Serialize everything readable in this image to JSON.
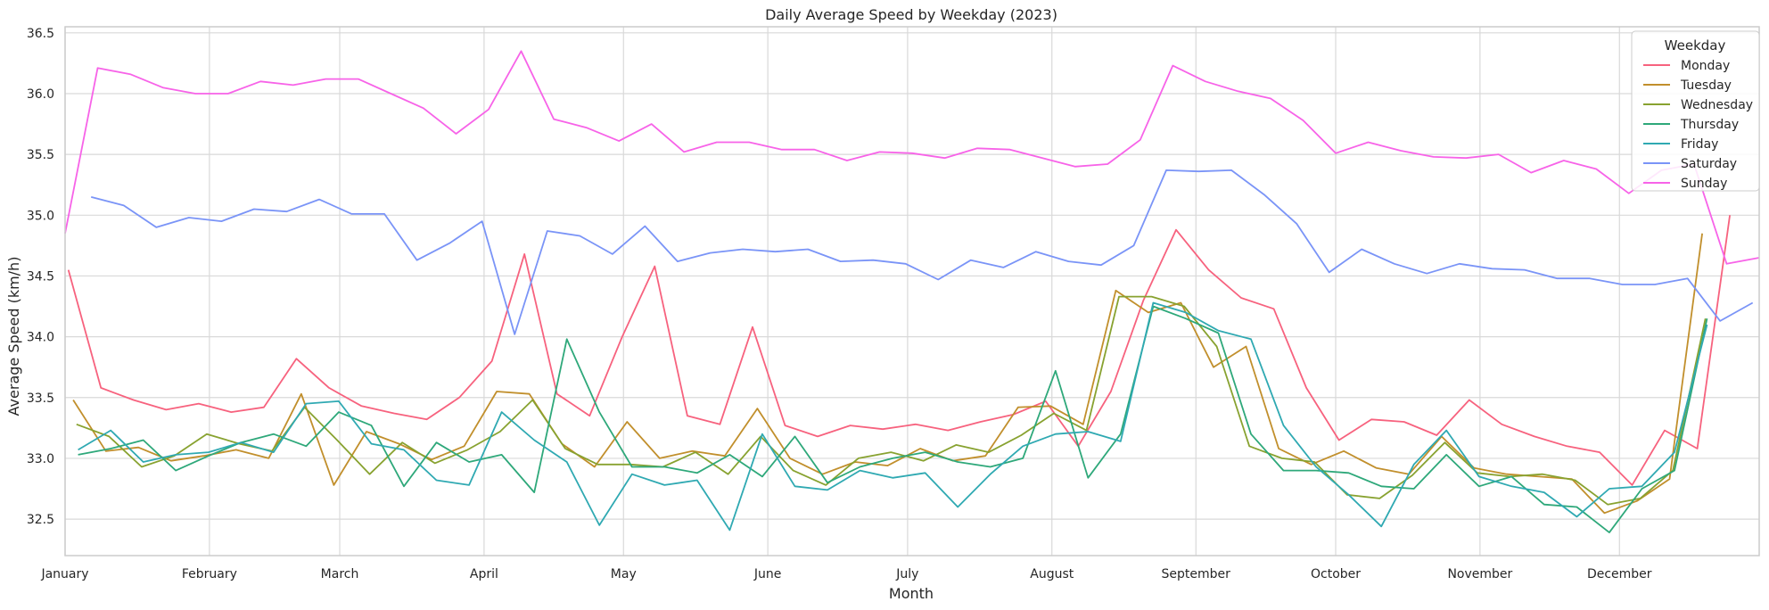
{
  "chart_data": {
    "type": "line",
    "title": "Daily Average Speed by Weekday (2023)",
    "xlabel": "Month",
    "ylabel": "Average Speed (km/h)",
    "ylim": [
      32.2,
      36.55
    ],
    "yticks": [
      "32.5",
      "33.0",
      "33.5",
      "34.0",
      "34.5",
      "35.0",
      "35.5",
      "36.0",
      "36.5"
    ],
    "ytick_values": [
      32.5,
      33.0,
      33.5,
      34.0,
      34.5,
      35.0,
      35.5,
      36.0,
      36.5
    ],
    "x_unit": "week of year",
    "xlim": [
      0,
      52
    ],
    "xticks": [
      "January",
      "February",
      "March",
      "April",
      "May",
      "June",
      "July",
      "August",
      "September",
      "October",
      "November",
      "December"
    ],
    "xtick_positions": [
      0,
      4.43,
      8.43,
      12.86,
      17.14,
      21.57,
      25.86,
      30.29,
      34.71,
      39.0,
      43.43,
      47.71
    ],
    "grid": true,
    "legend": {
      "title": "Weekday",
      "position": "top-right"
    },
    "series": [
      {
        "name": "Monday",
        "color": "#f7627e",
        "x0": 0.1,
        "values": [
          34.55,
          33.58,
          33.48,
          33.4,
          33.45,
          33.38,
          33.42,
          33.82,
          33.58,
          33.43,
          33.37,
          33.32,
          33.5,
          33.8,
          34.68,
          33.53,
          33.35,
          34.0,
          34.58,
          33.35,
          33.28,
          34.08,
          33.27,
          33.18,
          33.27,
          33.24,
          33.28,
          33.23,
          33.3,
          33.36,
          33.47,
          33.1,
          33.55,
          34.3,
          34.88,
          34.55,
          34.32,
          34.23,
          33.58,
          33.15,
          33.32,
          33.3,
          33.19,
          33.48,
          33.28,
          33.18,
          33.1,
          33.05,
          32.78,
          33.23,
          33.08,
          35.0
        ]
      },
      {
        "name": "Tuesday",
        "color": "#c18f2c",
        "x0": 0.25,
        "values": [
          33.48,
          33.06,
          33.09,
          32.98,
          33.02,
          33.07,
          33.0,
          33.53,
          32.78,
          33.22,
          33.12,
          32.99,
          33.1,
          33.55,
          33.53,
          33.12,
          32.93,
          33.3,
          33.0,
          33.06,
          33.02,
          33.41,
          33.0,
          32.87,
          32.97,
          32.94,
          33.08,
          32.98,
          33.02,
          33.42,
          33.43,
          33.28,
          34.38,
          34.2,
          34.28,
          33.75,
          33.92,
          33.08,
          32.95,
          33.06,
          32.92,
          32.87,
          33.18,
          32.92,
          32.87,
          32.85,
          32.83,
          32.55,
          32.65,
          32.83,
          34.85
        ]
      },
      {
        "name": "Wednesday",
        "color": "#88a230",
        "x0": 0.35,
        "values": [
          33.28,
          33.18,
          32.93,
          33.02,
          33.2,
          33.12,
          33.06,
          33.42,
          33.15,
          32.87,
          33.13,
          32.96,
          33.07,
          33.22,
          33.48,
          33.08,
          32.95,
          32.95,
          32.93,
          33.05,
          32.87,
          33.18,
          32.9,
          32.78,
          33.0,
          33.05,
          32.98,
          33.11,
          33.05,
          33.19,
          33.37,
          33.23,
          34.33,
          34.33,
          34.25,
          33.92,
          33.1,
          33.0,
          32.97,
          32.7,
          32.67,
          32.86,
          33.13,
          32.88,
          32.85,
          32.87,
          32.82,
          32.62,
          32.67,
          32.9,
          34.15
        ]
      },
      {
        "name": "Thursday",
        "color": "#2ea87a",
        "x0": 0.4,
        "values": [
          33.03,
          33.08,
          33.15,
          32.9,
          33.02,
          33.13,
          33.2,
          33.1,
          33.38,
          33.27,
          32.77,
          33.13,
          32.97,
          33.03,
          32.72,
          33.98,
          33.38,
          32.93,
          32.93,
          32.88,
          33.03,
          32.85,
          33.18,
          32.8,
          32.93,
          33.0,
          33.05,
          32.97,
          32.93,
          33.0,
          33.72,
          32.84,
          33.2,
          34.25,
          34.15,
          34.03,
          33.2,
          32.9,
          32.9,
          32.88,
          32.77,
          32.75,
          33.03,
          32.77,
          32.85,
          32.62,
          32.6,
          32.39,
          32.75,
          32.9,
          34.15
        ]
      },
      {
        "name": "Friday",
        "color": "#2fa9b2",
        "x0": 0.4,
        "values": [
          33.07,
          33.23,
          32.97,
          33.03,
          33.05,
          33.13,
          33.05,
          33.45,
          33.47,
          33.12,
          33.07,
          32.82,
          32.78,
          33.38,
          33.15,
          32.97,
          32.45,
          32.87,
          32.78,
          32.82,
          32.41,
          33.2,
          32.77,
          32.74,
          32.9,
          32.84,
          32.88,
          32.6,
          32.87,
          33.1,
          33.2,
          33.22,
          33.14,
          34.28,
          34.2,
          34.05,
          33.98,
          33.27,
          32.93,
          32.7,
          32.44,
          32.95,
          33.23,
          32.85,
          32.77,
          32.72,
          32.52,
          32.75,
          32.77,
          33.05,
          34.1
        ]
      },
      {
        "name": "Saturday",
        "color": "#7a94f7",
        "x0": 0.8,
        "values": [
          35.15,
          35.08,
          34.9,
          34.98,
          34.95,
          35.05,
          35.03,
          35.13,
          35.01,
          35.01,
          34.63,
          34.77,
          34.95,
          34.02,
          34.87,
          34.83,
          34.68,
          34.91,
          34.62,
          34.69,
          34.72,
          34.7,
          34.72,
          34.62,
          34.63,
          34.6,
          34.47,
          34.63,
          34.57,
          34.7,
          34.62,
          34.59,
          34.75,
          35.37,
          35.36,
          35.37,
          35.17,
          34.93,
          34.53,
          34.72,
          34.6,
          34.52,
          34.6,
          34.56,
          34.55,
          34.48,
          34.48,
          34.43,
          34.43,
          34.48,
          34.13,
          34.28
        ]
      },
      {
        "name": "Sunday",
        "color": "#f763e8",
        "x0": 0,
        "values": [
          34.85,
          36.21,
          36.16,
          36.05,
          36.0,
          36.0,
          36.1,
          36.07,
          36.12,
          36.12,
          36.0,
          35.88,
          35.67,
          35.87,
          36.35,
          35.79,
          35.72,
          35.61,
          35.75,
          35.52,
          35.6,
          35.6,
          35.54,
          35.54,
          35.45,
          35.52,
          35.51,
          35.47,
          35.55,
          35.54,
          35.47,
          35.4,
          35.42,
          35.62,
          36.23,
          36.1,
          36.02,
          35.96,
          35.78,
          35.51,
          35.6,
          35.53,
          35.48,
          35.47,
          35.5,
          35.35,
          35.45,
          35.38,
          35.18,
          35.37,
          35.42,
          34.6,
          34.65
        ]
      }
    ]
  }
}
